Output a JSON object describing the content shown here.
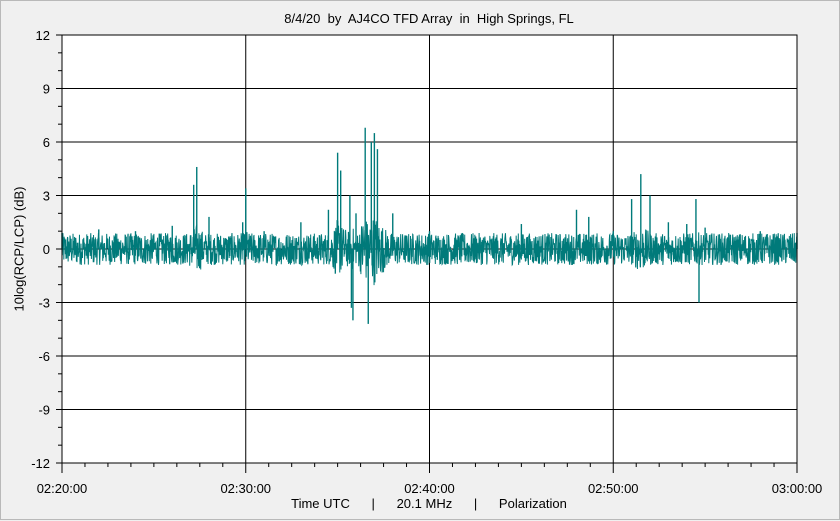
{
  "title": "8/4/20  by  AJ4CO TFD Array  in  High Springs, FL",
  "footer": "Time UTC      |      20.1 MHz      |      Polarization",
  "colors": {
    "series": "#007a7a",
    "grid": "#000000",
    "plot_background": "#ffffff",
    "page_background": "#f0f0f0"
  },
  "chart_data": {
    "type": "line",
    "title": "8/4/20  by  AJ4CO TFD Array  in  High Springs, FL",
    "xlabel": "Time UTC      |      20.1 MHz      |      Polarization",
    "ylabel": "10log(RCP/LCP) (dB)",
    "xlim": [
      "02:20:00",
      "03:00:00"
    ],
    "ylim": [
      -12,
      12
    ],
    "x_ticks": [
      "02:20:00",
      "02:30:00",
      "02:40:00",
      "02:50:00",
      "03:00:00"
    ],
    "y_ticks": [
      -12,
      -9,
      -6,
      -3,
      0,
      3,
      6,
      9,
      12
    ],
    "grid": true,
    "legend": "none",
    "series": [
      {
        "baseline": 0,
        "noise_band": [
          -1.0,
          1.0
        ],
        "x": [
          "02:20:00",
          "02:22:00",
          "02:24:00",
          "02:26:00",
          "02:27:10",
          "02:27:20",
          "02:28:00",
          "02:29:50",
          "02:30:00",
          "02:31:00",
          "02:33:00",
          "02:34:30",
          "02:35:00",
          "02:35:10",
          "02:35:40",
          "02:35:45",
          "02:35:50",
          "02:36:00",
          "02:36:30",
          "02:36:40",
          "02:36:50",
          "02:37:00",
          "02:37:10",
          "02:38:00",
          "02:40:00",
          "02:45:00",
          "02:48:00",
          "02:48:40",
          "02:50:00",
          "02:51:00",
          "02:51:30",
          "02:52:00",
          "02:53:00",
          "02:54:00",
          "02:54:30",
          "02:54:40",
          "02:55:00",
          "02:58:00",
          "03:00:00"
        ],
        "peak_values": [
          0.9,
          1.1,
          1.0,
          1.3,
          3.6,
          4.6,
          1.8,
          1.5,
          3.4,
          1.0,
          1.5,
          2.2,
          5.4,
          4.4,
          3.0,
          -3.3,
          -4.0,
          2.0,
          6.8,
          -4.2,
          6.0,
          6.5,
          5.6,
          2.0,
          1.0,
          1.4,
          2.2,
          1.8,
          1.0,
          2.8,
          4.2,
          3.0,
          1.5,
          1.4,
          2.8,
          -3.0,
          1.2,
          1.0,
          0.9
        ]
      }
    ]
  }
}
